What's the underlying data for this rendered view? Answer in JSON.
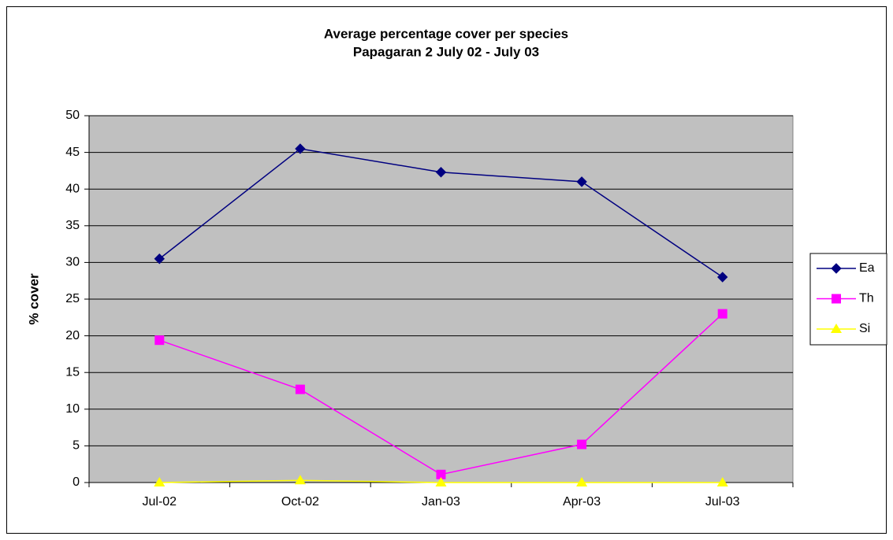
{
  "chart_data": {
    "type": "line",
    "title": "Average percentage cover per species",
    "subtitle": "Papagaran 2 July 02 - July 03",
    "ylabel": "% cover",
    "categories": [
      "Jul-02",
      "Oct-02",
      "Jan-03",
      "Apr-03",
      "Jul-03"
    ],
    "series": [
      {
        "name": "Ea",
        "color": "#000080",
        "marker": "diamond",
        "values": [
          30.5,
          45.5,
          42.3,
          41,
          28
        ]
      },
      {
        "name": "Th",
        "color": "#ff00ff",
        "marker": "square",
        "values": [
          19.4,
          12.7,
          1.1,
          5.2,
          23
        ]
      },
      {
        "name": "Si",
        "color": "#ffff00",
        "marker": "triangle",
        "values": [
          0,
          0.3,
          0,
          0,
          0
        ]
      }
    ],
    "ylim": [
      0,
      50
    ],
    "yticks": [
      0,
      5,
      10,
      15,
      20,
      25,
      30,
      35,
      40,
      45,
      50
    ],
    "grid": true,
    "legend": "right",
    "plot_background": "#c0c0c0"
  }
}
